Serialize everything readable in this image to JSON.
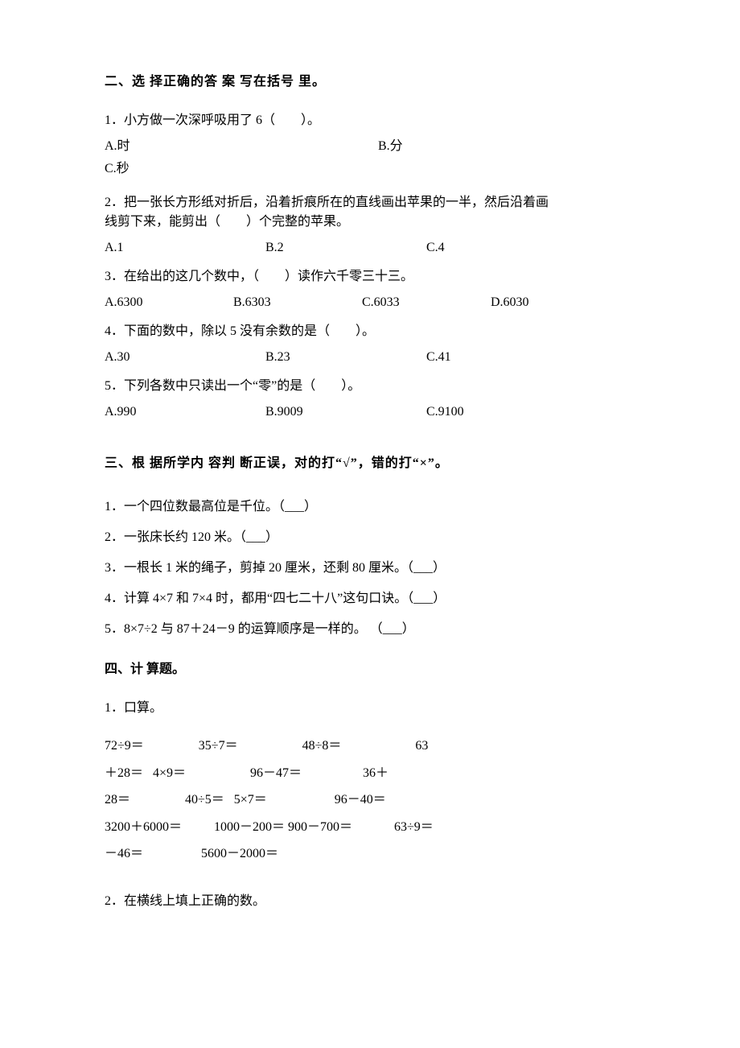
{
  "section2": {
    "title": "二、选 择正确的答 案 写在括号 里。",
    "q1": {
      "text": "1．小方做一次深呼吸用了 6（　　）。",
      "a": "A.时",
      "b": "B.分",
      "c": "C.秒"
    },
    "q2": {
      "text1": "2．把一张长方形纸对折后，沿着折痕所在的直线画出苹果的一半，然后沿着画",
      "text2": "线剪下来，能剪出（　　）个完整的苹果。",
      "a": "A.1",
      "b": "B.2",
      "c": "C.4"
    },
    "q3": {
      "text": "3．在给出的这几个数中，（　　）读作六千零三十三。",
      "a": "A.6300",
      "b": "B.6303",
      "c": "C.6033",
      "d": "D.6030"
    },
    "q4": {
      "text": "4．下面的数中，除以 5 没有余数的是（　　）。",
      "a": "A.30",
      "b": "B.23",
      "c": "C.41"
    },
    "q5": {
      "text": "5．下列各数中只读出一个“零”的是（　　）。",
      "a": "A.990",
      "b": "B.9009",
      "c": "C.9100"
    }
  },
  "section3": {
    "title": "三、根 据所学内 容判 断正误，对的打“√”，错的打“×”。",
    "q1": "1．一个四位数最高位是千位。（___）",
    "q2": "2．一张床长约 120 米。（___）",
    "q3": "3．一根长 1 米的绳子，剪掉 20 厘米，还剩 80 厘米。（___）",
    "q4": "4．计算 4×7 和 7×4 时，都用“四七二十八”这句口诀。（___）",
    "q5": "5．8×7÷2 与 87＋24－9 的运算顺序是一样的。 （___）"
  },
  "section4": {
    "title": "四、计 算题。",
    "q1_label": "1．口算。",
    "calc_lines": [
      "72÷9＝                 35÷7＝                    48÷8＝                       63",
      "＋28＝   4×9＝                    96－47＝                   36＋",
      "28＝                 40÷5＝   5×7＝                     96－40＝",
      "3200＋6000＝          1000－200＝ 900－700＝             63÷9＝",
      "－46＝                  5600－2000＝"
    ],
    "q2_label": "2．在横线上填上正确的数。"
  }
}
